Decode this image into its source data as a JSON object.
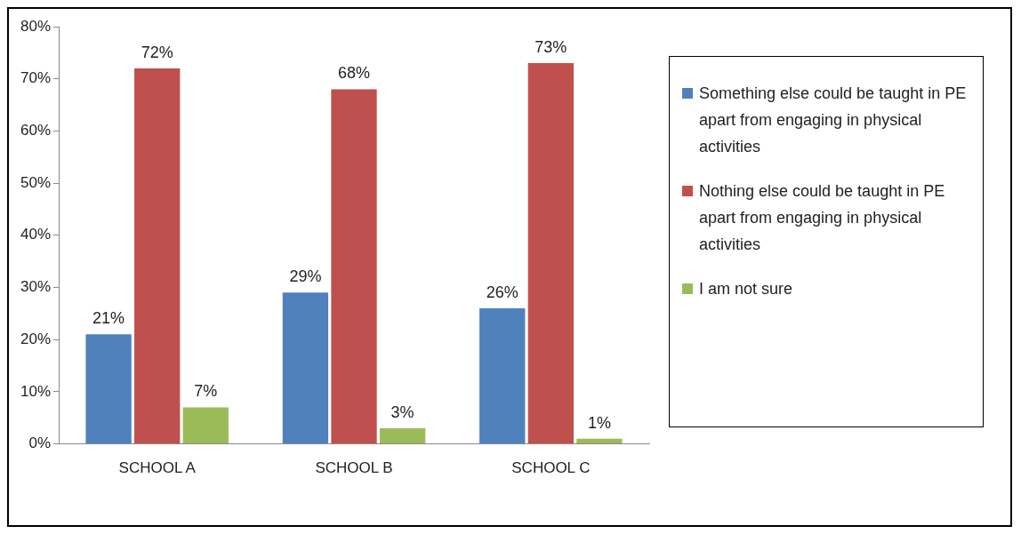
{
  "chart_data": {
    "type": "bar",
    "categories": [
      "SCHOOL A",
      "SCHOOL B",
      "SCHOOL C"
    ],
    "series": [
      {
        "name": "Something else could be taught in PE apart from engaging in physical activities",
        "color": "#4f81bd",
        "values": [
          21,
          29,
          26
        ],
        "value_labels": [
          "21%",
          "29%",
          "26%"
        ]
      },
      {
        "name": "Nothing else could be taught in PE apart from engaging in physical activities",
        "color": "#c0504d",
        "values": [
          72,
          68,
          73
        ],
        "value_labels": [
          "72%",
          "68%",
          "73%"
        ]
      },
      {
        "name": "I am not sure",
        "color": "#9bbb59",
        "values": [
          7,
          3,
          1
        ],
        "value_labels": [
          "7%",
          "3%",
          "1%"
        ]
      }
    ],
    "ylim": [
      0,
      80
    ],
    "yticks": [
      {
        "value": 0,
        "label": "0%"
      },
      {
        "value": 10,
        "label": "10%"
      },
      {
        "value": 20,
        "label": "20%"
      },
      {
        "value": 30,
        "label": "30%"
      },
      {
        "value": 40,
        "label": "40%"
      },
      {
        "value": 50,
        "label": "50%"
      },
      {
        "value": 60,
        "label": "60%"
      },
      {
        "value": 70,
        "label": "70%"
      },
      {
        "value": 80,
        "label": "80%"
      }
    ],
    "grid": false,
    "legend": "right"
  }
}
